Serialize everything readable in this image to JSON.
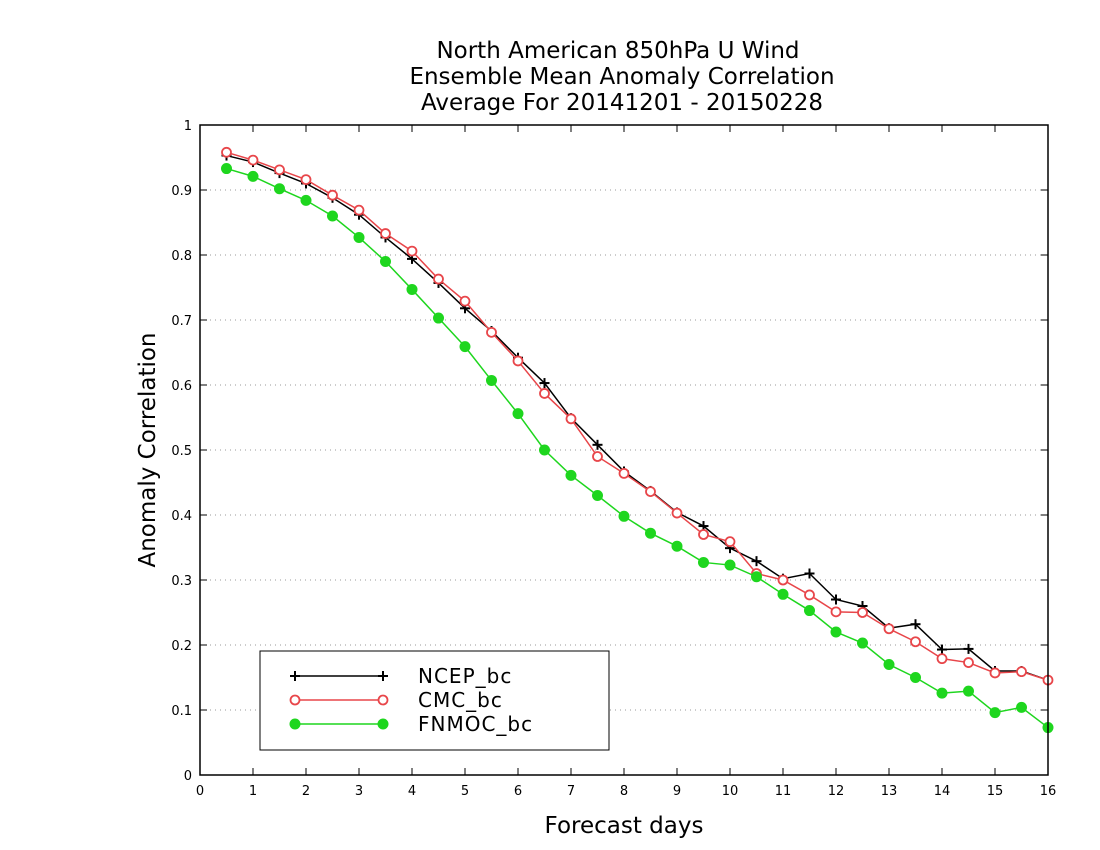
{
  "chart_data": {
    "type": "line",
    "title_lines": [
      "North American 850hPa U Wind",
      "Ensemble Mean Anomaly Correlation",
      "Average For 20141201 - 20150228"
    ],
    "xlabel": "Forecast days",
    "ylabel": "Anomaly Correlation",
    "xlim": [
      0,
      16
    ],
    "ylim": [
      0,
      1
    ],
    "x_ticks": [
      0,
      1,
      2,
      3,
      4,
      5,
      6,
      7,
      8,
      9,
      10,
      11,
      12,
      13,
      14,
      15,
      16
    ],
    "y_ticks": [
      0,
      0.1,
      0.2,
      0.3,
      0.4,
      0.5,
      0.6,
      0.7,
      0.8,
      0.9,
      1
    ],
    "x_tick_labels": [
      "0",
      "1",
      "2",
      "3",
      "4",
      "5",
      "6",
      "7",
      "8",
      "9",
      "10",
      "11",
      "12",
      "13",
      "14",
      "15",
      "16"
    ],
    "y_tick_labels": [
      "0",
      "0.1",
      "0.2",
      "0.3",
      "0.4",
      "0.5",
      "0.6",
      "0.7",
      "0.8",
      "0.9",
      "1"
    ],
    "grid": "horizontal dotted",
    "legend_position": "bottom-left",
    "x": [
      0.5,
      1.0,
      1.5,
      2.0,
      2.5,
      3.0,
      3.5,
      4.0,
      4.5,
      5.0,
      5.5,
      6.0,
      6.5,
      7.0,
      7.5,
      8.0,
      8.5,
      9.0,
      9.5,
      10.0,
      10.5,
      11.0,
      11.5,
      12.0,
      12.5,
      13.0,
      13.5,
      14.0,
      14.5,
      15.0,
      15.5,
      16.0
    ],
    "series": [
      {
        "name": "NCEP_bc",
        "color": "#000000",
        "marker": "plus",
        "values": [
          0.953,
          0.943,
          0.926,
          0.91,
          0.888,
          0.862,
          0.827,
          0.794,
          0.757,
          0.718,
          0.683,
          0.642,
          0.603,
          0.549,
          0.508,
          0.467,
          0.437,
          0.404,
          0.383,
          0.349,
          0.329,
          0.302,
          0.31,
          0.27,
          0.26,
          0.226,
          0.232,
          0.193,
          0.194,
          0.16,
          0.16,
          0.146
        ]
      },
      {
        "name": "CMC_bc",
        "color": "#e8464a",
        "marker": "open-circle",
        "values": [
          0.958,
          0.946,
          0.931,
          0.916,
          0.892,
          0.869,
          0.833,
          0.806,
          0.763,
          0.729,
          0.681,
          0.637,
          0.587,
          0.548,
          0.49,
          0.464,
          0.436,
          0.403,
          0.37,
          0.359,
          0.31,
          0.3,
          0.277,
          0.251,
          0.25,
          0.225,
          0.205,
          0.179,
          0.173,
          0.157,
          0.159,
          0.146
        ]
      },
      {
        "name": "FNMOC_bc",
        "color": "#1ed61e",
        "marker": "filled-circle",
        "values": [
          0.933,
          0.921,
          0.902,
          0.884,
          0.86,
          0.827,
          0.79,
          0.747,
          0.703,
          0.659,
          0.607,
          0.556,
          0.5,
          0.461,
          0.43,
          0.398,
          0.372,
          0.352,
          0.327,
          0.323,
          0.305,
          0.278,
          0.253,
          0.22,
          0.203,
          0.17,
          0.15,
          0.126,
          0.129,
          0.096,
          0.104,
          0.073
        ]
      }
    ]
  }
}
